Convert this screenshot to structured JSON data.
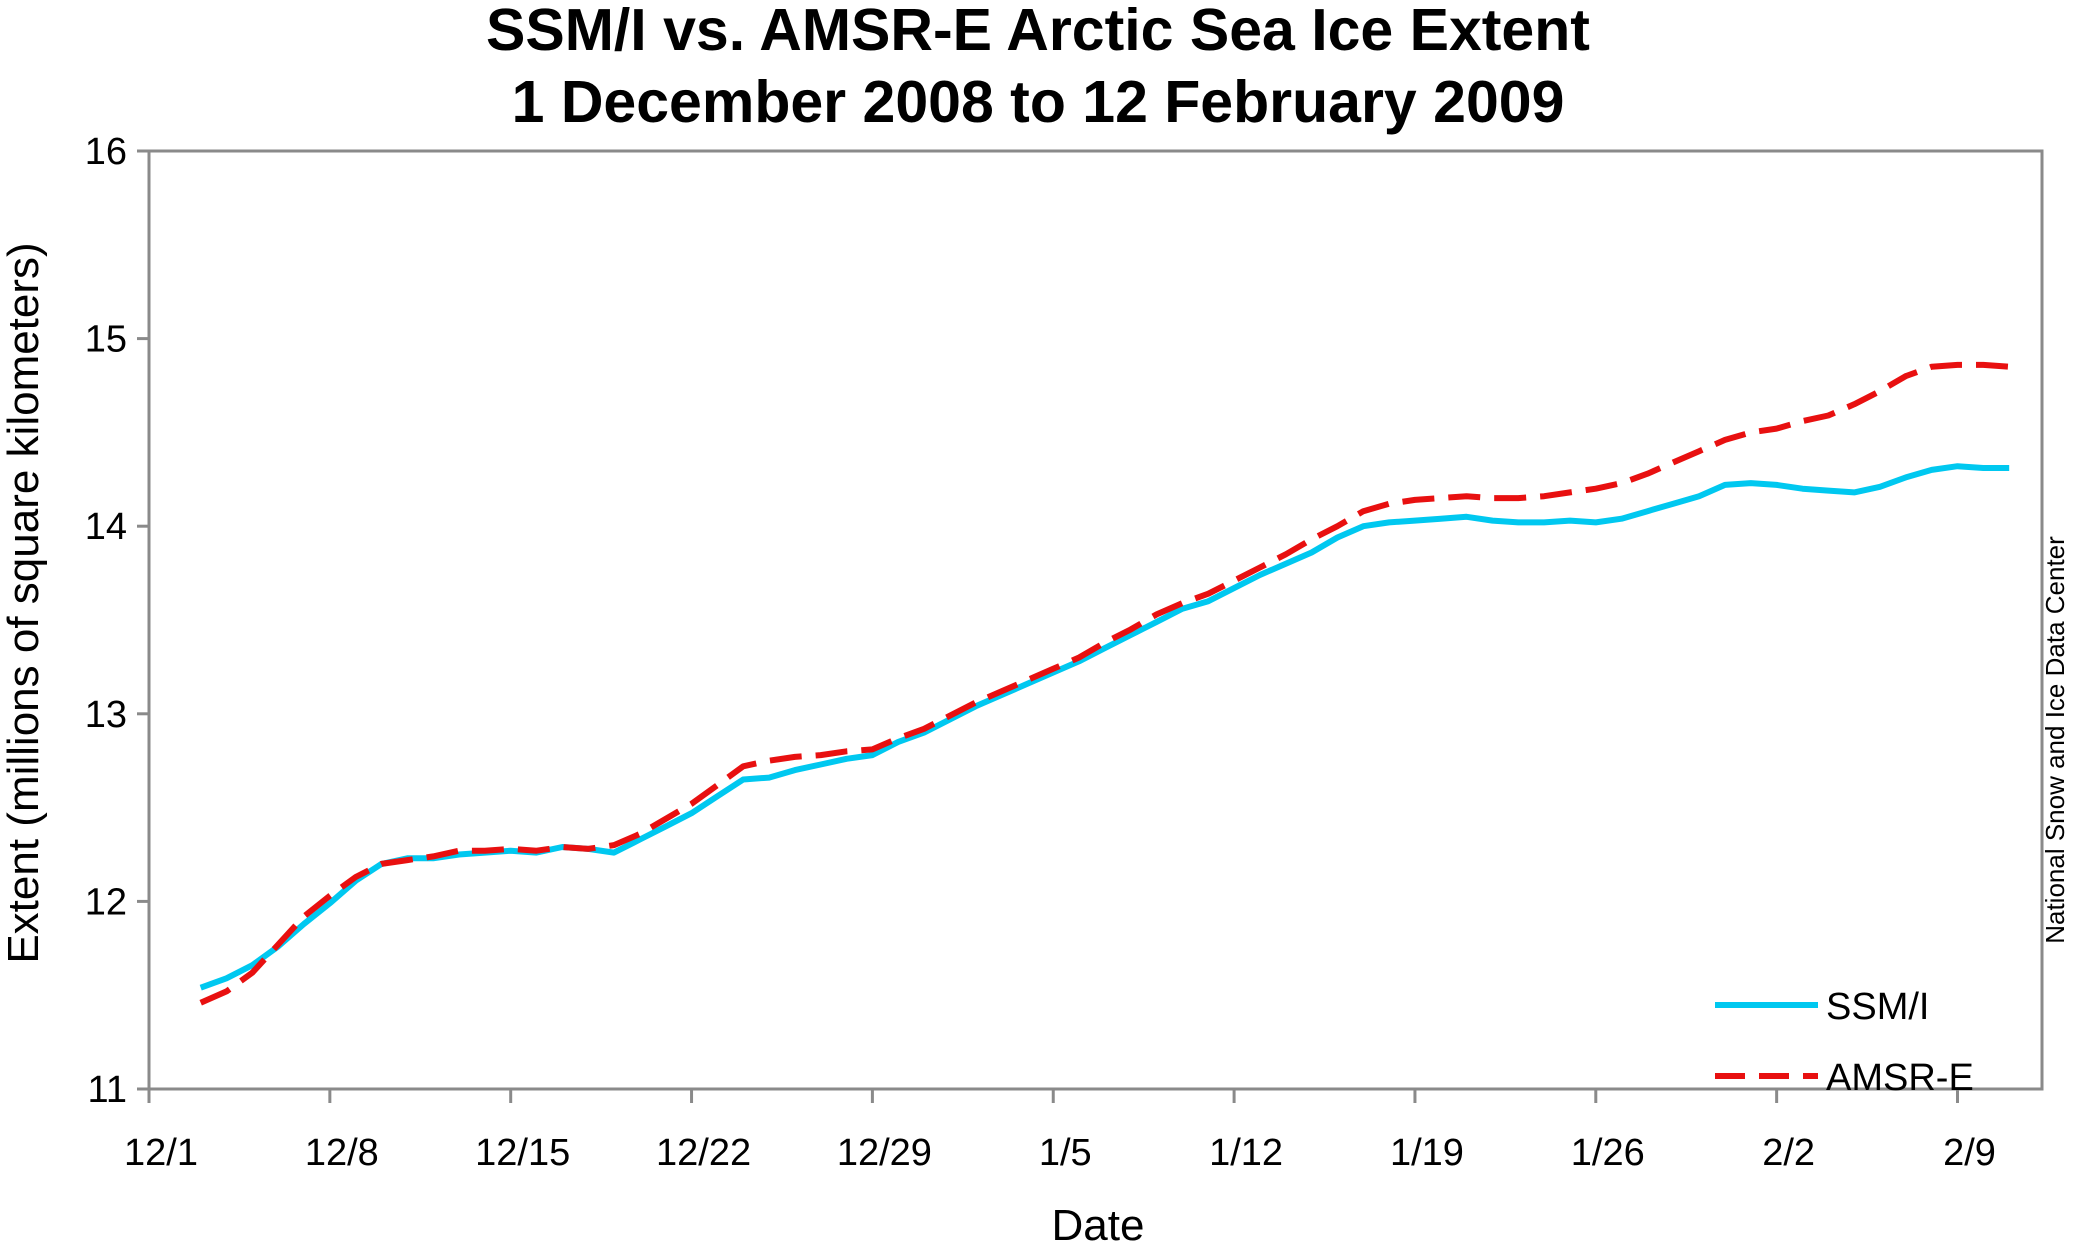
{
  "chart_data": {
    "type": "line",
    "title": [
      "SSM/I vs. AMSR-E Arctic Sea Ice Extent",
      "1 December 2008  to 12 February 2009"
    ],
    "xlabel": "Date",
    "ylabel": "Extent (millions of square kilometers)",
    "ylim": [
      11,
      16
    ],
    "yticks": [
      "11",
      "12",
      "13",
      "14",
      "15",
      "16"
    ],
    "xticks": [
      "12/1",
      "12/8",
      "12/15",
      "12/22",
      "12/29",
      "1/5",
      "1/12",
      "1/19",
      "1/26",
      "2/2",
      "2/9"
    ],
    "x": [
      "12/3",
      "12/4",
      "12/5",
      "12/6",
      "12/7",
      "12/8",
      "12/9",
      "12/10",
      "12/11",
      "12/12",
      "12/13",
      "12/14",
      "12/15",
      "12/16",
      "12/17",
      "12/18",
      "12/19",
      "12/20",
      "12/21",
      "12/22",
      "12/23",
      "12/24",
      "12/25",
      "12/26",
      "12/27",
      "12/28",
      "12/29",
      "12/30",
      "12/31",
      "1/1",
      "1/2",
      "1/3",
      "1/4",
      "1/5",
      "1/6",
      "1/7",
      "1/8",
      "1/9",
      "1/10",
      "1/11",
      "1/12",
      "1/13",
      "1/14",
      "1/15",
      "1/16",
      "1/17",
      "1/18",
      "1/19",
      "1/20",
      "1/21",
      "1/22",
      "1/23",
      "1/24",
      "1/25",
      "1/26",
      "1/27",
      "1/28",
      "1/29",
      "1/30",
      "1/31",
      "2/1",
      "2/2",
      "2/3",
      "2/4",
      "2/5",
      "2/6",
      "2/7",
      "2/8",
      "2/9",
      "2/10",
      "2/11"
    ],
    "series": [
      {
        "name": "SSM/I",
        "color": "#00c8f0",
        "dash": "solid",
        "values": [
          11.54,
          11.59,
          11.66,
          11.76,
          11.88,
          11.99,
          12.11,
          12.2,
          12.23,
          12.23,
          12.25,
          12.26,
          12.27,
          12.26,
          12.29,
          12.28,
          12.26,
          12.33,
          12.4,
          12.47,
          12.56,
          12.65,
          12.66,
          12.7,
          12.73,
          12.76,
          12.78,
          12.85,
          12.9,
          12.97,
          13.04,
          13.1,
          13.16,
          13.22,
          13.28,
          13.35,
          13.42,
          13.49,
          13.56,
          13.6,
          13.67,
          13.74,
          13.8,
          13.86,
          13.94,
          14.0,
          14.02,
          14.03,
          14.04,
          14.05,
          14.03,
          14.02,
          14.02,
          14.03,
          14.02,
          14.04,
          14.08,
          14.12,
          14.16,
          14.22,
          14.23,
          14.22,
          14.2,
          14.19,
          14.18,
          14.21,
          14.26,
          14.3,
          14.32,
          14.31,
          14.31
        ]
      },
      {
        "name": "AMSR-E",
        "color": "#e81010",
        "dash": "dashed",
        "values": [
          11.46,
          11.52,
          11.62,
          11.77,
          11.92,
          12.03,
          12.13,
          12.2,
          12.22,
          12.24,
          12.27,
          12.27,
          12.28,
          12.27,
          12.29,
          12.28,
          12.3,
          12.36,
          12.44,
          12.52,
          12.62,
          12.72,
          12.75,
          12.77,
          12.78,
          12.8,
          12.81,
          12.87,
          12.92,
          12.99,
          13.06,
          13.12,
          13.18,
          13.24,
          13.3,
          13.38,
          13.45,
          13.53,
          13.59,
          13.64,
          13.71,
          13.78,
          13.85,
          13.93,
          14.0,
          14.08,
          14.12,
          14.14,
          14.15,
          14.16,
          14.15,
          14.15,
          14.16,
          14.18,
          14.2,
          14.23,
          14.28,
          14.34,
          14.4,
          14.46,
          14.5,
          14.52,
          14.56,
          14.59,
          14.65,
          14.72,
          14.8,
          14.85,
          14.86,
          14.86,
          14.85
        ]
      }
    ],
    "legend": {
      "position": "bottom-right",
      "entries": [
        "SSM/I",
        "AMSR-E"
      ]
    },
    "grid": false,
    "credit": "National Snow and Ice Data Center"
  }
}
